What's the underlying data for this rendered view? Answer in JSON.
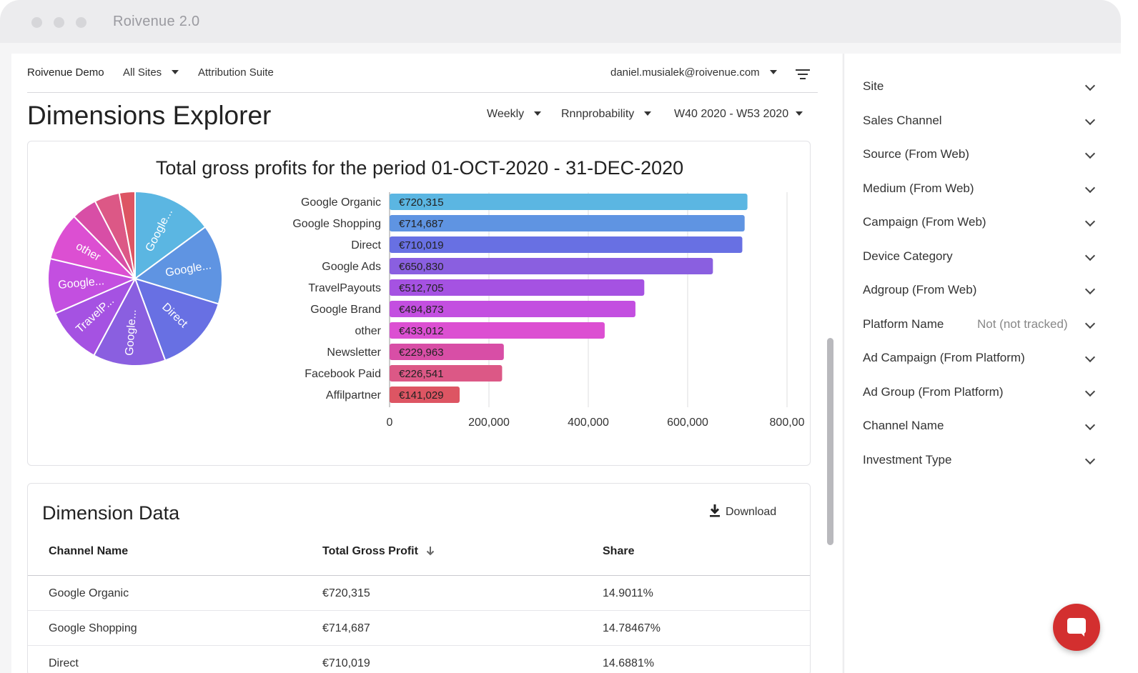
{
  "window": {
    "title": "Roivenue 2.0"
  },
  "nav": {
    "brand": "Roivenue Demo",
    "sites": "All Sites",
    "suite": "Attribution Suite",
    "user": "daniel.musialek@roivenue.com"
  },
  "page": {
    "title": "Dimensions Explorer",
    "period_type": "Weekly",
    "model": "Rnnprobability",
    "range": "W40 2020 - W53 2020"
  },
  "chart_data": {
    "type": "bar",
    "title": "Total gross profits for the period 01-OCT-2020 - 31-DEC-2020",
    "categories": [
      "Google Organic",
      "Google Shopping",
      "Direct",
      "Google Ads",
      "TravelPayouts",
      "Google Brand",
      "other",
      "Newsletter",
      "Facebook Paid",
      "Affilpartner"
    ],
    "values": [
      720315,
      714687,
      710019,
      650830,
      512705,
      494873,
      433012,
      229963,
      226541,
      141029
    ],
    "data_labels": [
      "€720,315",
      "€714,687",
      "€710,019",
      "€650,830",
      "€512,705",
      "€494,873",
      "€433,012",
      "€229,963",
      "€226,541",
      "€141,029"
    ],
    "xlim": [
      0,
      800000
    ],
    "x_ticks": [
      "0",
      "200,000",
      "400,000",
      "600,000",
      "800,00"
    ],
    "colors": [
      "#5bb6e2",
      "#5f94e2",
      "#6870e3",
      "#8a5fe0",
      "#a552e2",
      "#c34fe0",
      "#dc4fd2",
      "#d84ea6",
      "#dc5886",
      "#dd5563"
    ],
    "pie": {
      "values": [
        720315,
        714687,
        710019,
        650830,
        512705,
        494873,
        433012,
        229963,
        226541,
        141029
      ],
      "slice_labels": [
        "Google...",
        "Google...",
        "Direct",
        "Google...",
        "TravelP...",
        "Google...",
        "other",
        "",
        "",
        ""
      ]
    }
  },
  "table": {
    "title": "Dimension Data",
    "download_label": "Download",
    "headers": [
      "Channel Name",
      "Total Gross Profit",
      "Share"
    ],
    "rows": [
      [
        "Google Organic",
        "€720,315",
        "14.9011%"
      ],
      [
        "Google Shopping",
        "€714,687",
        "14.78467%"
      ],
      [
        "Direct",
        "€710,019",
        "14.6881%"
      ]
    ]
  },
  "filters": [
    {
      "label": "Site",
      "value": ""
    },
    {
      "label": "Sales Channel",
      "value": ""
    },
    {
      "label": "Source (From Web)",
      "value": ""
    },
    {
      "label": "Medium (From Web)",
      "value": ""
    },
    {
      "label": "Campaign (From Web)",
      "value": ""
    },
    {
      "label": "Device Category",
      "value": ""
    },
    {
      "label": "Adgroup (From Web)",
      "value": ""
    },
    {
      "label": "Platform Name",
      "value": "Not (not tracked)"
    },
    {
      "label": "Ad Campaign (From Platform)",
      "value": ""
    },
    {
      "label": "Ad Group (From Platform)",
      "value": ""
    },
    {
      "label": "Channel Name",
      "value": ""
    },
    {
      "label": "Investment Type",
      "value": ""
    }
  ]
}
